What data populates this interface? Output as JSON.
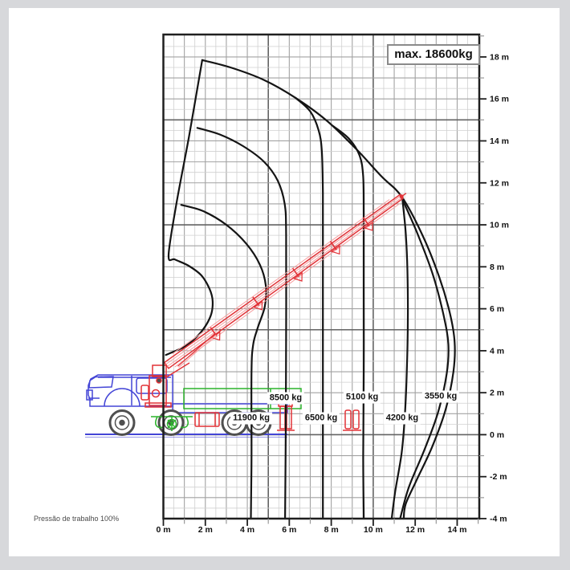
{
  "window": {
    "background": "#d7d8db",
    "panel_background": "#ffffff"
  },
  "colors": {
    "frame": "#1f1f1f",
    "grid_minor": "#d0d0d0",
    "grid_major": "#a2a2a2",
    "grid_strong": "#636363",
    "curve": "#141414",
    "truck_blue": "#4345d6",
    "crane_red": "#e23237",
    "crane_red_light": "#f59fa0",
    "green": "#2cb42c",
    "wheel_gray": "#4f4f4f",
    "tick_minor": "#999999",
    "label_text": "#111111",
    "footnote_text": "#4a4a4a"
  },
  "chart_data": {
    "type": "line",
    "description": "Truck crane load capacity diagram: outreach (m) vs hook height (m) with capacity envelope curves",
    "max_capacity_label": "max. 18600kg",
    "footnote": "Pressão de trabalho 100%",
    "grid": "on, 0.5 m minor / 1 m major / 5 m strong",
    "x_axis": {
      "unit": "m",
      "min": 0,
      "max": 15,
      "labels": [
        "0 m",
        "2 m",
        "4 m",
        "6 m",
        "8 m",
        "10 m",
        "12 m",
        "14 m"
      ],
      "label_positions": [
        0,
        2,
        4,
        6,
        8,
        10,
        12,
        14
      ]
    },
    "y_axis": {
      "unit": "m",
      "min": -4,
      "max": 19,
      "labels": [
        "18 m",
        "16 m",
        "14 m",
        "12 m",
        "10 m",
        "8 m",
        "6 m",
        "4 m",
        "2 m",
        "0 m",
        "-2 m",
        "-4 m"
      ],
      "label_positions": [
        18,
        16,
        14,
        12,
        10,
        8,
        6,
        4,
        2,
        0,
        -2,
        -4
      ]
    },
    "capacity_labels": [
      {
        "text": "11900 kg",
        "x": 4.19,
        "h": 0.78
      },
      {
        "text": "8500 kg",
        "x": 5.83,
        "h": 1.74
      },
      {
        "text": "6500 kg",
        "x": 7.52,
        "h": 0.78
      },
      {
        "text": "5100 kg",
        "x": 9.47,
        "h": 1.78
      },
      {
        "text": "4200 kg",
        "x": 11.38,
        "h": 0.78
      },
      {
        "text": "3550 kg",
        "x": 13.22,
        "h": 1.81
      }
    ],
    "series": [
      {
        "name": "inner-boundary",
        "capacity_kg": null,
        "points": [
          [
            1.85,
            17.85
          ],
          [
            1.22,
            14.2
          ],
          [
            0.62,
            11.0
          ],
          [
            0.25,
            8.55
          ],
          [
            0.55,
            8.35
          ],
          [
            1.2,
            8.05
          ],
          [
            1.8,
            7.6
          ],
          [
            2.2,
            6.95
          ],
          [
            2.35,
            6.35
          ],
          [
            2.25,
            5.65
          ],
          [
            1.8,
            4.9
          ],
          [
            1.1,
            4.25
          ],
          [
            0.4,
            3.92
          ],
          [
            0.12,
            3.8
          ]
        ]
      },
      {
        "name": "envelope-max",
        "capacity_kg": 3550,
        "points": [
          [
            1.85,
            17.85
          ],
          [
            3.2,
            17.5
          ],
          [
            4.8,
            16.9
          ],
          [
            6.3,
            16.05
          ],
          [
            7.8,
            14.95
          ],
          [
            9.2,
            13.6
          ],
          [
            10.4,
            12.3
          ],
          [
            11.35,
            11.35
          ],
          [
            12.35,
            9.5
          ],
          [
            13.15,
            7.5
          ],
          [
            13.65,
            5.8
          ],
          [
            13.88,
            4.4
          ],
          [
            13.82,
            3.0
          ],
          [
            13.45,
            1.2
          ],
          [
            12.8,
            -0.6
          ],
          [
            12.05,
            -2.2
          ],
          [
            11.55,
            -3.3
          ],
          [
            11.45,
            -4.0
          ]
        ]
      },
      {
        "name": "capacity-3550",
        "capacity_kg": 3550,
        "points": [
          [
            11.35,
            11.3
          ],
          [
            12.1,
            9.6
          ],
          [
            12.85,
            7.6
          ],
          [
            13.35,
            5.7
          ],
          [
            13.58,
            4.3
          ],
          [
            13.5,
            2.9
          ],
          [
            13.1,
            1.1
          ],
          [
            12.45,
            -0.7
          ],
          [
            11.7,
            -2.5
          ],
          [
            11.28,
            -4.0
          ]
        ]
      },
      {
        "name": "capacity-4200",
        "capacity_kg": 4200,
        "points": [
          [
            11.4,
            11.15
          ],
          [
            11.55,
            9.6
          ],
          [
            11.63,
            7.8
          ],
          [
            11.65,
            5.5
          ],
          [
            11.6,
            3.0
          ],
          [
            11.5,
            0.8
          ],
          [
            11.35,
            -0.9
          ],
          [
            11.05,
            -2.7
          ],
          [
            10.88,
            -4.0
          ]
        ]
      },
      {
        "name": "capacity-5100",
        "capacity_kg": 5100,
        "points": [
          [
            8.1,
            14.7
          ],
          [
            8.85,
            14.1
          ],
          [
            9.35,
            13.3
          ],
          [
            9.52,
            12.3
          ],
          [
            9.55,
            10.5
          ],
          [
            9.55,
            7.0
          ],
          [
            9.55,
            3.0
          ],
          [
            9.52,
            -1.0
          ],
          [
            9.55,
            -4.0
          ]
        ]
      },
      {
        "name": "capacity-6500",
        "capacity_kg": 6500,
        "points": [
          [
            6.3,
            16.05
          ],
          [
            7.0,
            15.4
          ],
          [
            7.4,
            14.5
          ],
          [
            7.55,
            13.5
          ],
          [
            7.6,
            11.5
          ],
          [
            7.6,
            7.0
          ],
          [
            7.6,
            2.0
          ],
          [
            7.6,
            -4.0
          ]
        ]
      },
      {
        "name": "capacity-8500",
        "capacity_kg": 8500,
        "points": [
          [
            1.62,
            14.62
          ],
          [
            2.7,
            14.3
          ],
          [
            3.8,
            13.75
          ],
          [
            4.8,
            13.0
          ],
          [
            5.45,
            12.1
          ],
          [
            5.78,
            11.0
          ],
          [
            5.85,
            9.5
          ],
          [
            5.85,
            5.0
          ],
          [
            5.83,
            0.0
          ],
          [
            5.8,
            -4.0
          ]
        ]
      },
      {
        "name": "capacity-11900",
        "capacity_kg": 11900,
        "points": [
          [
            0.85,
            10.95
          ],
          [
            1.9,
            10.65
          ],
          [
            3.0,
            10.0
          ],
          [
            3.95,
            9.1
          ],
          [
            4.6,
            8.1
          ],
          [
            4.88,
            7.1
          ],
          [
            4.83,
            6.1
          ],
          [
            4.5,
            5.1
          ],
          [
            4.28,
            4.3
          ],
          [
            4.2,
            3.0
          ],
          [
            4.2,
            -1.0
          ],
          [
            4.17,
            -4.0
          ]
        ]
      }
    ],
    "boom": {
      "pivot": [
        0.15,
        3.3
      ],
      "tip": [
        11.35,
        11.35
      ]
    }
  }
}
